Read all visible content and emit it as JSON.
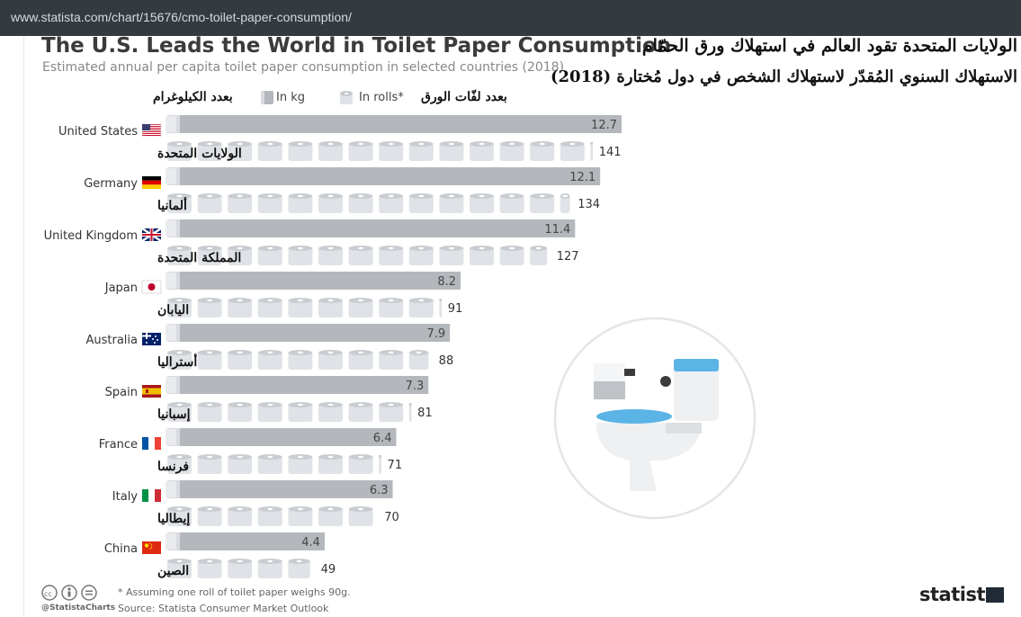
{
  "browser": {
    "url": "www.statista.com/chart/15676/cmo-toilet-paper-consumption/"
  },
  "header": {
    "title": "The U.S. Leads the World in Toilet Paper Consumption",
    "subtitle": "Estimated annual per capita toilet paper consumption in selected countries (2018)",
    "title_ar": "الولايات المتحدة تقود العالم في استهلاك ورق الحمّام",
    "subtitle_ar": "الاستهلاك السنوي المُقدّر لاستهلاك الشخص في دول مُختارة (2018)"
  },
  "legend": {
    "kg_ar": "بعدد الكيلوغرام",
    "kg": "In kg",
    "rolls": "In rolls*",
    "rolls_ar": "بعدد لفّات الورق"
  },
  "chart_data": {
    "type": "bar",
    "categories": [
      "United States",
      "Germany",
      "United Kingdom",
      "Japan",
      "Australia",
      "Spain",
      "France",
      "Italy",
      "China"
    ],
    "categories_ar": [
      "الولايات المتحدة",
      "ألمانيا",
      "المملكة المتحدة",
      "اليابان",
      "أستراليا",
      "إسبانيا",
      "فرنسا",
      "إيطاليا",
      "الصين"
    ],
    "series": [
      {
        "name": "In kg",
        "values": [
          12.7,
          12.1,
          11.4,
          8.2,
          7.9,
          7.3,
          6.4,
          6.3,
          4.4
        ]
      },
      {
        "name": "In rolls*",
        "values": [
          141,
          134,
          127,
          91,
          88,
          81,
          71,
          70,
          49
        ]
      }
    ],
    "colors": {
      "bar": "#b4b8bd",
      "roll": "#dfe2e6",
      "roll_core": "#ffffff"
    },
    "flags": [
      "us-flag-icon",
      "germany-flag-icon",
      "uk-flag-icon",
      "japan-flag-icon",
      "australia-flag-icon",
      "spain-flag-icon",
      "france-flag-icon",
      "italy-flag-icon",
      "china-flag-icon"
    ]
  },
  "footer": {
    "footnote": "* Assuming one roll of toilet paper weighs 90g.",
    "source": "Source: Statista Consumer Market Outlook",
    "handle": "@StatistaCharts",
    "brand": "statista"
  },
  "illustration": {
    "icon": "toilet-icon"
  }
}
